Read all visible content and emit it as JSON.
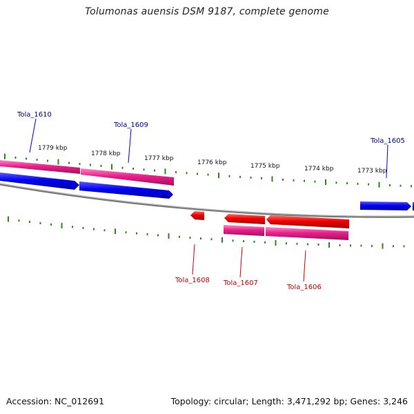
{
  "title": "Tolumonas auensis DSM 9187, complete genome",
  "footer": {
    "accession": "Accession: NC_012691",
    "topology": "Topology: circular; Length: 3,471,292 bp; Genes: 3,246"
  },
  "colors": {
    "forward_cds": "#0000ee",
    "reverse_cds": "#ee0000",
    "gene_forward": "#e01a80",
    "gene_reverse": "#e01a80",
    "backbone": "#808080",
    "tick_minor": "#2a8a1a",
    "label_forward": "#00008b",
    "label_reverse": "#cc0000"
  },
  "ruler": {
    "unit": "kbp",
    "labels": [
      "1779 kbp",
      "1778 kbp",
      "1777 kbp",
      "1776 kbp",
      "1775 kbp",
      "1774 kbp",
      "1773 kbp"
    ]
  },
  "genes": [
    {
      "name": "Tola_1610",
      "strand": "+"
    },
    {
      "name": "Tola_1609",
      "strand": "+"
    },
    {
      "name": "Tola_1605",
      "strand": "+"
    },
    {
      "name": "Tola_1608",
      "strand": "-"
    },
    {
      "name": "Tola_1607",
      "strand": "-"
    },
    {
      "name": "Tola_1606",
      "strand": "-"
    }
  ]
}
